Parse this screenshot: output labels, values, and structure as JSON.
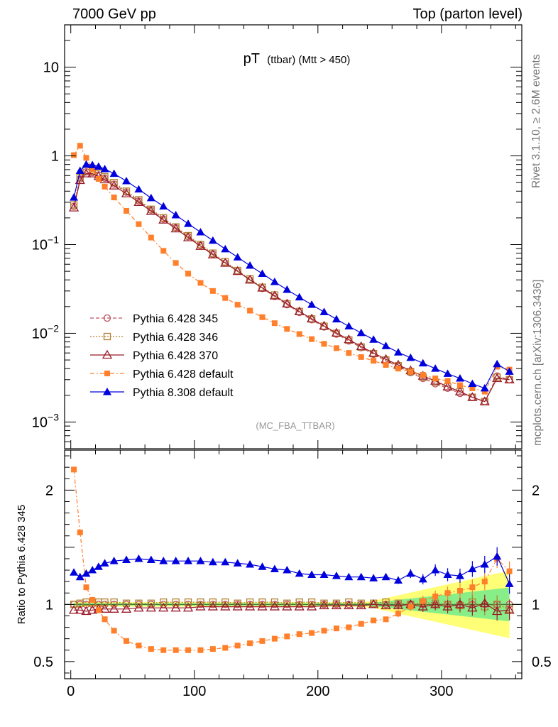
{
  "header": {
    "left": "7000 GeV pp",
    "right": "Top (parton level)"
  },
  "side": {
    "rivet": "Rivet 3.1.10, ≥ 2.6M events",
    "source": "mcplots.cern.ch [arXiv:1306.3436]"
  },
  "analysis_tag": "(MC_FBA_TTBAR)",
  "title": {
    "main": "pT",
    "sub": "(ttbar) (Mtt > 450)"
  },
  "ratio_ylabel": "Ratio to Pythia 6.428 345",
  "legend": [
    {
      "label": "Pythia 6.428 345",
      "color": "#c05060",
      "marker": "open-circle",
      "line": "dashed"
    },
    {
      "label": "Pythia 6.428 346",
      "color": "#b08030",
      "marker": "open-square",
      "line": "dotted"
    },
    {
      "label": "Pythia 6.428 370",
      "color": "#9a1a28",
      "marker": "open-triangle",
      "line": "solid"
    },
    {
      "label": "Pythia 6.428 default",
      "color": "#ff7f2a",
      "marker": "filled-square",
      "line": "dashdot"
    },
    {
      "label": "Pythia 8.308 default",
      "color": "#0000dd",
      "marker": "filled-triangle",
      "line": "solid"
    }
  ],
  "chart_data": [
    {
      "type": "line",
      "panel": "main",
      "yscale": "log",
      "xlim": [
        -5,
        365
      ],
      "ylim": [
        0.0005,
        30
      ],
      "ytick_labels": [
        "10",
        "1",
        "10^-1",
        "10^-2",
        "10^-3"
      ],
      "ytick_values": [
        10,
        1,
        0.1,
        0.01,
        0.001
      ],
      "x": [
        2.5,
        7.5,
        12.5,
        17.5,
        22.5,
        27.5,
        35,
        45,
        55,
        65,
        75,
        85,
        95,
        105,
        115,
        125,
        135,
        145,
        155,
        165,
        175,
        185,
        195,
        205,
        215,
        225,
        235,
        245,
        255,
        265,
        275,
        285,
        295,
        305,
        315,
        325,
        335,
        345,
        355
      ],
      "series": [
        {
          "name": "Pythia 6.428 345",
          "values": [
            0.27,
            0.55,
            0.66,
            0.65,
            0.61,
            0.56,
            0.48,
            0.39,
            0.31,
            0.245,
            0.195,
            0.155,
            0.123,
            0.098,
            0.078,
            0.062,
            0.05,
            0.04,
            0.032,
            0.026,
            0.021,
            0.0172,
            0.0142,
            0.0118,
            0.0098,
            0.0082,
            0.0069,
            0.0058,
            0.0049,
            0.0042,
            0.0036,
            0.0031,
            0.0027,
            0.0024,
            0.0021,
            0.0019,
            0.0017,
            0.0033,
            0.003
          ]
        },
        {
          "name": "Pythia 6.428 346",
          "values": [
            0.28,
            0.57,
            0.68,
            0.67,
            0.63,
            0.58,
            0.5,
            0.4,
            0.32,
            0.25,
            0.2,
            0.158,
            0.126,
            0.1,
            0.08,
            0.064,
            0.051,
            0.041,
            0.033,
            0.027,
            0.0215,
            0.0176,
            0.0145,
            0.012,
            0.01,
            0.0084,
            0.007,
            0.0059,
            0.005,
            0.0043,
            0.0037,
            0.0032,
            0.0028,
            0.0025,
            0.0022,
            0.0019,
            0.0017,
            0.0032,
            0.003
          ]
        },
        {
          "name": "Pythia 6.428 370",
          "values": [
            0.26,
            0.53,
            0.63,
            0.63,
            0.59,
            0.54,
            0.46,
            0.375,
            0.3,
            0.238,
            0.19,
            0.151,
            0.12,
            0.096,
            0.077,
            0.062,
            0.05,
            0.04,
            0.0325,
            0.0265,
            0.0215,
            0.0176,
            0.0146,
            0.0121,
            0.0101,
            0.0085,
            0.0071,
            0.006,
            0.0051,
            0.0044,
            0.0038,
            0.0033,
            0.0029,
            0.0025,
            0.0022,
            0.0019,
            0.0017,
            0.0031,
            0.003
          ]
        },
        {
          "name": "Pythia 6.428 default",
          "values": [
            1.02,
            1.3,
            0.95,
            0.7,
            0.55,
            0.45,
            0.34,
            0.24,
            0.17,
            0.12,
            0.085,
            0.062,
            0.047,
            0.037,
            0.03,
            0.025,
            0.021,
            0.018,
            0.0152,
            0.013,
            0.0112,
            0.0098,
            0.0086,
            0.0076,
            0.0068,
            0.006,
            0.0054,
            0.0049,
            0.0044,
            0.004,
            0.0037,
            0.0034,
            0.0031,
            0.0029,
            0.0026,
            0.0024,
            0.0022,
            0.0042,
            0.0039
          ]
        },
        {
          "name": "Pythia 8.308 default",
          "values": [
            0.34,
            0.68,
            0.8,
            0.79,
            0.76,
            0.71,
            0.63,
            0.52,
            0.42,
            0.335,
            0.27,
            0.215,
            0.172,
            0.138,
            0.111,
            0.089,
            0.072,
            0.058,
            0.047,
            0.038,
            0.031,
            0.0255,
            0.021,
            0.0174,
            0.0144,
            0.012,
            0.0101,
            0.0085,
            0.0072,
            0.0061,
            0.0053,
            0.0046,
            0.004,
            0.0035,
            0.0031,
            0.0027,
            0.0024,
            0.0045,
            0.0037
          ]
        }
      ]
    },
    {
      "type": "line",
      "panel": "ratio",
      "xlabel": "",
      "ylabel": "Ratio to Pythia 6.428 345",
      "xlim": [
        -5,
        365
      ],
      "ylim": [
        0.35,
        2.35
      ],
      "xtick_labels": [
        "0",
        "100",
        "200",
        "300"
      ],
      "xtick_values": [
        0,
        100,
        200,
        300
      ],
      "ytick_labels": [
        "0.5",
        "1",
        "2"
      ],
      "ytick_values": [
        0.5,
        1,
        2
      ],
      "x": [
        2.5,
        7.5,
        12.5,
        17.5,
        22.5,
        27.5,
        35,
        45,
        55,
        65,
        75,
        85,
        95,
        105,
        115,
        125,
        135,
        145,
        155,
        165,
        175,
        185,
        195,
        205,
        215,
        225,
        235,
        245,
        255,
        265,
        275,
        285,
        295,
        305,
        315,
        325,
        335,
        345,
        355
      ],
      "series": [
        {
          "name": "Pythia 6.428 346",
          "values": [
            1.0,
            1.01,
            1.02,
            1.02,
            1.02,
            1.02,
            1.02,
            1.01,
            1.01,
            1.01,
            1.02,
            1.02,
            1.02,
            1.02,
            1.02,
            1.02,
            1.01,
            1.02,
            1.02,
            1.02,
            1.01,
            1.02,
            1.02,
            1.01,
            1.01,
            1.02,
            1.01,
            1.01,
            1.02,
            1.01,
            1.0,
            1.02,
            1.01,
            1.0,
            0.99,
            1.02,
            0.98,
            1.0,
            0.96
          ]
        },
        {
          "name": "Pythia 6.428 370",
          "values": [
            0.95,
            0.95,
            0.94,
            0.95,
            0.96,
            0.96,
            0.96,
            0.96,
            0.97,
            0.97,
            0.97,
            0.97,
            0.97,
            0.98,
            0.98,
            0.98,
            0.98,
            0.98,
            0.98,
            0.98,
            0.98,
            0.98,
            0.98,
            0.99,
            0.99,
            0.99,
            0.99,
            1.0,
            0.99,
            0.99,
            1.0,
            0.98,
            1.0,
            0.98,
            1.0,
            0.97,
            1.01,
            0.94,
            0.95
          ]
        },
        {
          "name": "Pythia 6.428 default",
          "values": [
            2.18,
            1.63,
            1.15,
            1.04,
            0.95,
            0.87,
            0.77,
            0.68,
            0.64,
            0.61,
            0.6,
            0.6,
            0.6,
            0.6,
            0.61,
            0.62,
            0.64,
            0.66,
            0.68,
            0.7,
            0.72,
            0.74,
            0.75,
            0.77,
            0.79,
            0.8,
            0.83,
            0.86,
            0.87,
            0.92,
            0.98,
            1.03,
            1.07,
            1.1,
            1.12,
            1.15,
            1.2,
            1.4,
            1.29
          ]
        },
        {
          "name": "Pythia 8.308 default",
          "values": [
            1.28,
            1.24,
            1.27,
            1.3,
            1.33,
            1.36,
            1.38,
            1.39,
            1.4,
            1.39,
            1.38,
            1.38,
            1.38,
            1.38,
            1.37,
            1.37,
            1.36,
            1.35,
            1.33,
            1.31,
            1.3,
            1.27,
            1.26,
            1.26,
            1.25,
            1.24,
            1.24,
            1.23,
            1.24,
            1.21,
            1.27,
            1.22,
            1.3,
            1.26,
            1.25,
            1.31,
            1.35,
            1.42,
            1.18
          ]
        }
      ]
    }
  ]
}
